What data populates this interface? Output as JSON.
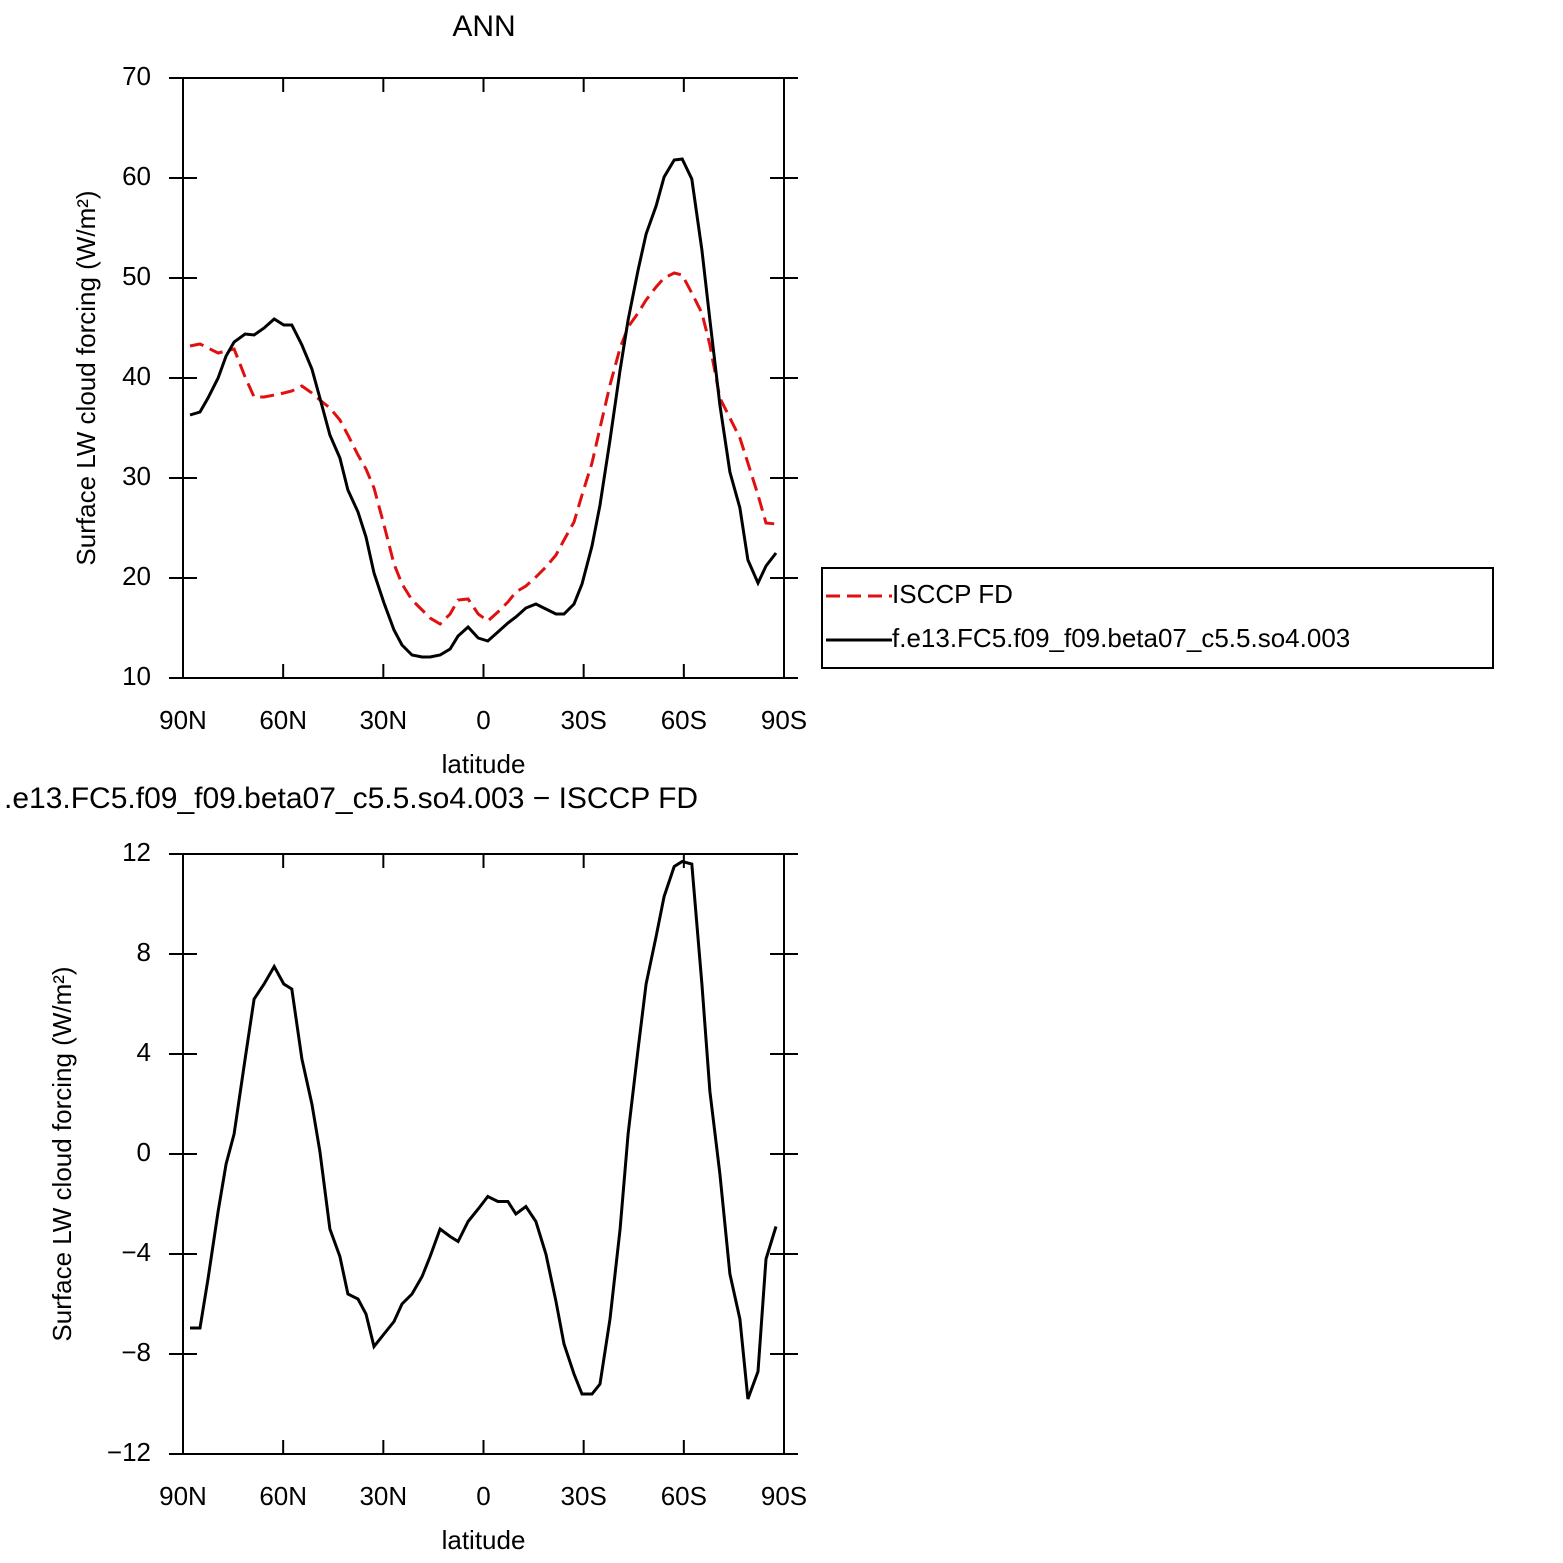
{
  "chart_data": [
    {
      "type": "line",
      "title": "ANN",
      "xlabel": "latitude",
      "ylabel": "Surface LW cloud forcing (W/m²)",
      "x": [
        87.9,
        84.9,
        82.5,
        79.5,
        77.1,
        74.7,
        71.4,
        68.7,
        65.7,
        62.7,
        59.8,
        57.4,
        54.4,
        51.4,
        49.0,
        46.0,
        43.0,
        40.6,
        37.6,
        35.2,
        32.8,
        29.8,
        26.8,
        24.4,
        21.4,
        18.4,
        16.0,
        13.0,
        10.0,
        7.6,
        4.6,
        1.6,
        -1.3,
        -4.3,
        -7.3,
        -9.7,
        -12.7,
        -15.7,
        -18.7,
        -21.7,
        -24.1,
        -27.1,
        -29.5,
        -32.5,
        -34.9,
        -37.9,
        -40.9,
        -43.3,
        -46.3,
        -48.7,
        -51.7,
        -54.1,
        -57.1,
        -59.5,
        -62.4,
        -65.4,
        -67.8,
        -70.8,
        -73.8,
        -76.8,
        -79.2,
        -82.2,
        -84.6,
        -87.6
      ],
      "series": [
        {
          "name": "ISCCP FD",
          "color": "#e01010",
          "dash": "dashed",
          "values": [
            43.2,
            43.4,
            43.0,
            42.5,
            42.7,
            42.9,
            40.1,
            38.1,
            38.1,
            38.3,
            38.5,
            38.7,
            39.2,
            38.5,
            37.8,
            37.0,
            35.8,
            34.3,
            32.3,
            30.9,
            29.0,
            25.3,
            21.4,
            19.4,
            17.8,
            16.8,
            16.0,
            15.4,
            16.4,
            17.8,
            17.9,
            16.4,
            15.7,
            16.6,
            17.6,
            18.6,
            19.2,
            20.1,
            21.1,
            22.3,
            23.8,
            25.6,
            28.3,
            31.5,
            35.0,
            39.3,
            43.0,
            45.1,
            46.5,
            47.8,
            49.1,
            50.0,
            50.5,
            50.3,
            48.5,
            46.5,
            43.3,
            38.0,
            36.0,
            34.0,
            31.5,
            28.3,
            25.5,
            25.4
          ]
        },
        {
          "name": "f.e13.FC5.f09_f09.beta07_c5.5.so4.003",
          "color": "#000000",
          "dash": "solid",
          "values": [
            36.3,
            36.6,
            38.0,
            40.0,
            42.2,
            43.6,
            44.4,
            44.3,
            45.0,
            45.9,
            45.3,
            45.3,
            43.3,
            40.9,
            38.0,
            34.3,
            32.0,
            28.8,
            26.6,
            24.1,
            20.5,
            17.5,
            14.8,
            13.3,
            12.3,
            12.1,
            12.1,
            12.3,
            12.9,
            14.2,
            15.1,
            14.0,
            13.7,
            14.6,
            15.5,
            16.1,
            17.0,
            17.4,
            16.9,
            16.4,
            16.4,
            17.4,
            19.4,
            23.2,
            27.3,
            33.8,
            40.8,
            45.8,
            50.8,
            54.4,
            57.2,
            60.1,
            61.8,
            61.9,
            59.9,
            52.8,
            45.8,
            37.3,
            30.6,
            27.0,
            21.8,
            19.5,
            21.2,
            22.5
          ]
        }
      ],
      "xlim": [
        90,
        -90
      ],
      "xticks": [
        {
          "value": 90,
          "label": "90N"
        },
        {
          "value": 60,
          "label": "60N"
        },
        {
          "value": 30,
          "label": "30N"
        },
        0,
        {
          "value": -30,
          "label": "30S"
        },
        {
          "value": -60,
          "label": "60S"
        },
        {
          "value": -90,
          "label": "90S"
        }
      ],
      "ylim": [
        10,
        70
      ],
      "yticks": [
        10,
        20,
        30,
        40,
        50,
        60,
        70
      ],
      "legend": "right"
    },
    {
      "type": "line",
      "title": ".e13.FC5.f09_f09.beta07_c5.5.so4.003 − ISCCP FD",
      "xlabel": "latitude",
      "ylabel": "Surface LW cloud forcing (W/m²)",
      "x": [
        87.9,
        84.9,
        82.5,
        79.5,
        77.1,
        74.7,
        71.4,
        68.7,
        65.7,
        62.7,
        59.8,
        57.4,
        54.4,
        51.4,
        49.0,
        46.0,
        43.0,
        40.6,
        37.6,
        35.2,
        32.8,
        29.8,
        26.8,
        24.4,
        21.4,
        18.4,
        16.0,
        13.0,
        10.0,
        7.6,
        4.6,
        1.6,
        -1.3,
        -4.3,
        -7.3,
        -9.7,
        -12.7,
        -15.7,
        -18.7,
        -21.7,
        -24.1,
        -27.1,
        -29.5,
        -32.5,
        -34.9,
        -37.9,
        -40.9,
        -43.3,
        -46.3,
        -48.7,
        -51.7,
        -54.1,
        -57.1,
        -59.5,
        -62.4,
        -65.4,
        -67.8,
        -70.8,
        -73.8,
        -76.8,
        -79.2,
        -82.2,
        -84.6,
        -87.6
      ],
      "series": [
        {
          "color": "#000000",
          "dash": "solid",
          "values": [
            -6.96,
            -6.96,
            -5.0,
            -2.3,
            -0.4,
            0.8,
            3.8,
            6.2,
            6.8,
            7.5,
            6.8,
            6.6,
            3.8,
            2.0,
            0.1,
            -3.0,
            -4.1,
            -5.6,
            -5.8,
            -6.4,
            -7.7,
            -7.2,
            -6.7,
            -6.0,
            -5.6,
            -4.9,
            -4.1,
            -3.0,
            -3.3,
            -3.5,
            -2.7,
            -2.2,
            -1.7,
            -1.9,
            -1.9,
            -2.4,
            -2.1,
            -2.7,
            -4.0,
            -5.9,
            -7.6,
            -8.8,
            -9.6,
            -9.6,
            -9.2,
            -6.6,
            -3.0,
            0.8,
            4.2,
            6.8,
            8.7,
            10.3,
            11.5,
            11.7,
            11.6,
            6.8,
            2.5,
            -0.8,
            -4.8,
            -6.6,
            -9.8,
            -8.7,
            -4.2,
            -2.9
          ]
        }
      ],
      "xlim": [
        90,
        -90
      ],
      "xticks": [
        {
          "value": 90,
          "label": "90N"
        },
        {
          "value": 60,
          "label": "60N"
        },
        {
          "value": 30,
          "label": "30N"
        },
        0,
        {
          "value": -30,
          "label": "30S"
        },
        {
          "value": -60,
          "label": "60S"
        },
        {
          "value": -90,
          "label": "90S"
        }
      ],
      "ylim": [
        -12,
        12
      ],
      "yticks": [
        {
          "value": -12,
          "label": "−12"
        },
        {
          "value": -8,
          "label": "−8"
        },
        {
          "value": -4,
          "label": "−4"
        },
        0,
        4,
        8,
        12
      ]
    }
  ]
}
